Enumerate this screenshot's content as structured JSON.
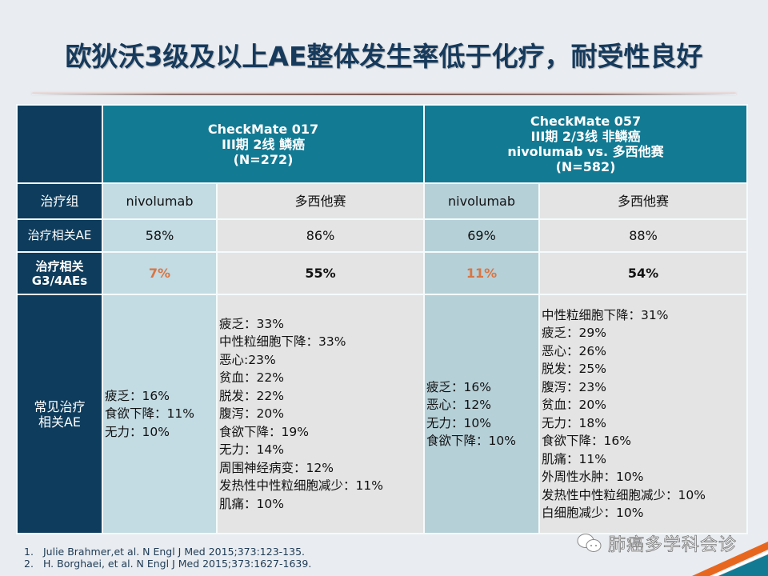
{
  "title": "欧狄沃3级及以上AE整体发生率低于化疗，耐受性良好",
  "table": {
    "studies": [
      {
        "name": "CheckMate 017",
        "line2": "III期 2线 鳞癌",
        "line3": "(N=272)",
        "line4": ""
      },
      {
        "name": "CheckMate 057",
        "line2": "III期 2/3线 非鳞癌",
        "line3": "nivolumab vs. 多西他赛",
        "line4": "(N=582)"
      }
    ],
    "rows": [
      {
        "label": "治疗组",
        "values": [
          "nivolumab",
          "多西他赛",
          "nivolumab",
          "多西他赛"
        ]
      },
      {
        "label": "治疗相关AE",
        "values": [
          "58%",
          "86%",
          "69%",
          "88%"
        ]
      },
      {
        "label": "治疗相关\nG3/4AEs",
        "label_line1": "治疗相关",
        "label_line2": "G3/4AEs",
        "values": [
          "7%",
          "55%",
          "11%",
          "54%"
        ]
      }
    ],
    "common_ae": {
      "label_line1": "常见治疗",
      "label_line2": "相关AE",
      "cm017_nivolumab": [
        "疲乏：16%",
        "食欲下降：11%",
        "无力：10%"
      ],
      "cm017_docetaxel": [
        "疲乏：33%",
        "中性粒细胞下降：33%",
        "恶心:23%",
        "贫血：22%",
        "脱发：22%",
        "腹泻：20%",
        "食欲下降：19%",
        "无力：14%",
        "周围神经病变：12%",
        "发热性中性粒细胞减少：11%",
        "肌痛：10%"
      ],
      "cm057_nivolumab": [
        "疲乏：16%",
        "恶心：12%",
        "无力：10%",
        "食欲下降：10%"
      ],
      "cm057_docetaxel": [
        "中性粒细胞下降：31%",
        "疲乏：29%",
        "恶心：26%",
        "脱发：25%",
        "腹泻：23%",
        "贫血：20%",
        "无力：18%",
        "食欲下降：16%",
        "肌痛：11%",
        "外周性水肿：10%",
        "发热性中性粒细胞减少：10%",
        "白细胞减少：10%"
      ]
    }
  },
  "references": [
    {
      "num": "1.",
      "text": "Julie Brahmer,et  al. N Engl J Med 2015;373:123-135."
    },
    {
      "num": "2.",
      "text": "H. Borghaei,  et al. N Engl J Med 2015;373:1627-1639."
    }
  ],
  "watermark": {
    "icon": "wechat-icon",
    "text": "肺癌多学科会诊"
  },
  "colors": {
    "title": "#163a5c",
    "label_column": "#0e3c5c",
    "header": "#137a93",
    "nivolumab_cell": "#c3dbe3",
    "docetaxel_cell": "#e4e4e4",
    "highlight": "#d97543",
    "corner_orange": "#e8671e",
    "corner_blue": "#137a93"
  }
}
